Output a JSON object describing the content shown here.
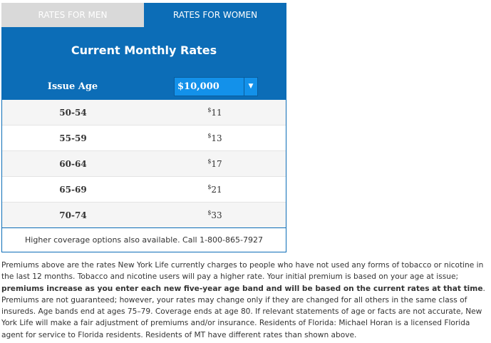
{
  "tabs": [
    {
      "label": "RATES FOR MEN",
      "active": false
    },
    {
      "label": "RATES FOR WOMEN",
      "active": true
    }
  ],
  "title": "Current Monthly Rates",
  "header": {
    "age_label": "Issue Age",
    "coverage_select": {
      "value": "$10,000",
      "arrow_icon": "caret-down-icon"
    }
  },
  "rates": [
    {
      "age": "50-54",
      "currency": "$",
      "amount": "11"
    },
    {
      "age": "55-59",
      "currency": "$",
      "amount": "13"
    },
    {
      "age": "60-64",
      "currency": "$",
      "amount": "17"
    },
    {
      "age": "65-69",
      "currency": "$",
      "amount": "21"
    },
    {
      "age": "70-74",
      "currency": "$",
      "amount": "33"
    }
  ],
  "footer": "Higher coverage options also available. Call 1-800-865-7927",
  "disclaimer": {
    "part1": "Premiums above are the rates New York Life currently charges to people who have not used any forms of tobacco or nicotine in the last 12 months. Tobacco and nicotine users will pay a higher rate. Your initial premium is based on your age at issue; ",
    "bold": "premiums increase as you enter each new five-year age band and will be based on the current rates at that time",
    "part2": ". Premiums are not guaranteed; however, your rates may change only if they are changed for all others in the same class of insureds. Age bands end at ages 75–79. Coverage ends at age 80. If relevant statements of age or facts are not accurate, New York Life will make a fair adjustment of premiums and/or insurance. Residents of Florida: Michael Horan is a licensed Florida agent for service to Florida residents. Residents of MT have different rates than shown above."
  },
  "colors": {
    "primary": "#0c6db7",
    "select": "#1391ea",
    "inactive_tab": "#d9d9d9"
  }
}
